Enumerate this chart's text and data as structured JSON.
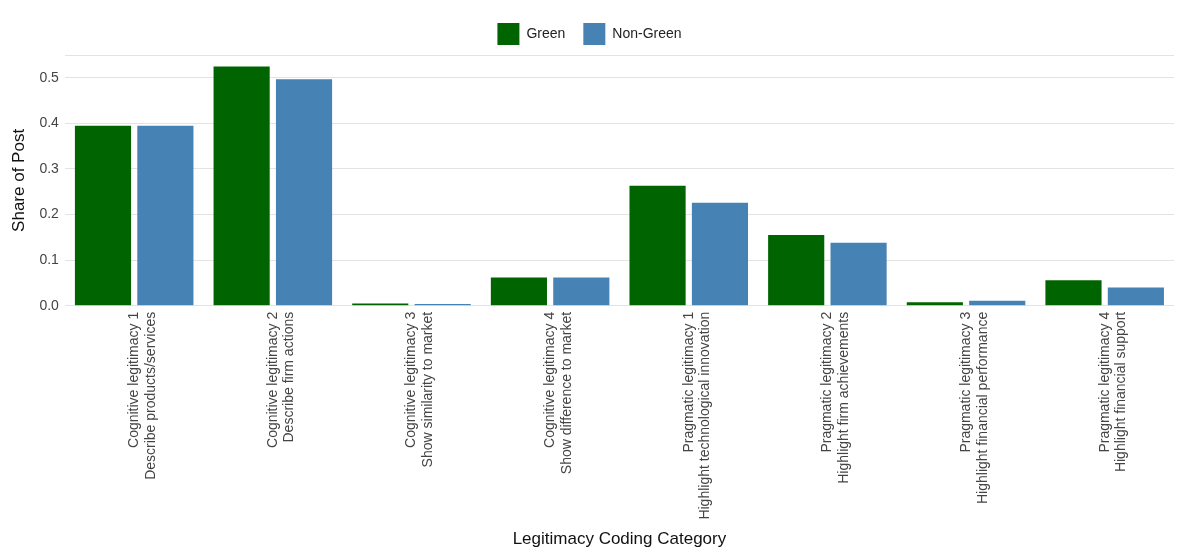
{
  "chart_data": {
    "type": "bar",
    "xlabel": "Legitimacy Coding Category",
    "ylabel": "Share of Post",
    "categories": [
      "Cognitive legitimacy 1\nDescribe products/services",
      "Cognitive legitimacy 2\nDescribe firm actions",
      "Cognitive legitimacy 3\nShow similarity to market",
      "Cognitive legitimacy 4\nShow difference to market",
      "Pragmatic legitimacy 1\nHighlight technological innovation",
      "Pragmatic legitimacy 2\nHighlight firm achievements",
      "Pragmatic legitimacy 3\nHighlight financial performance",
      "Pragmatic legitimacy 4\nHighlight financial support"
    ],
    "series": [
      {
        "name": "Green",
        "color": "#006400",
        "values": [
          0.395,
          0.525,
          0.005,
          0.062,
          0.263,
          0.155,
          0.008,
          0.056
        ]
      },
      {
        "name": "Non-Green",
        "color": "#4682b4",
        "values": [
          0.395,
          0.497,
          0.004,
          0.062,
          0.226,
          0.138,
          0.011,
          0.04
        ]
      }
    ],
    "ylim": [
      0,
      0.55
    ],
    "yticks": [
      {
        "value": 0,
        "label": "0.0"
      },
      0.1,
      0.2,
      0.3,
      0.4,
      0.5,
      {
        "value": 0.55,
        "label": null
      }
    ],
    "grid": "y",
    "legend": "top"
  }
}
